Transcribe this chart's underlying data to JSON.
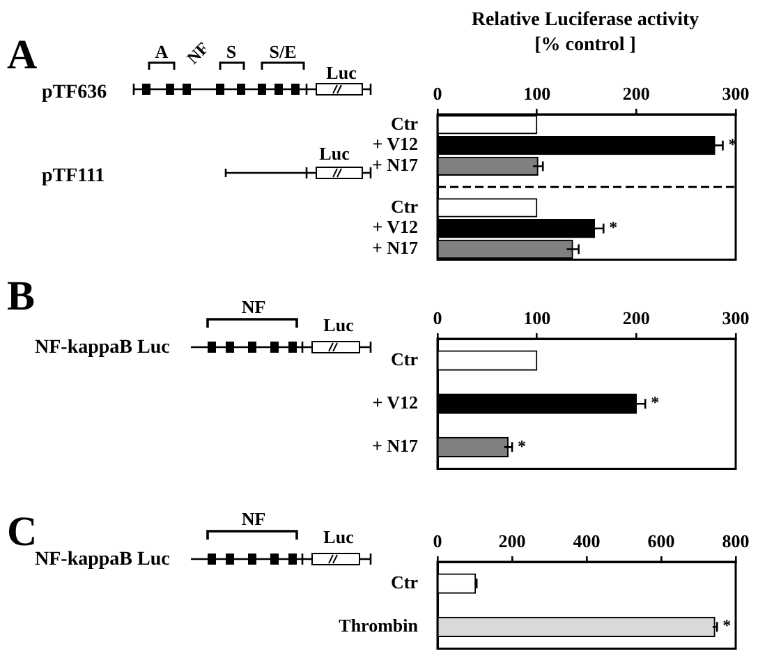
{
  "chart_data": [
    {
      "type": "bar",
      "orientation": "horizontal",
      "title": "Relative Luciferase activity",
      "subtitle": "[% control ]",
      "categories": [
        "Ctr",
        "+ V12",
        "+ N17",
        null,
        "Ctr",
        "+ V12",
        "+ N17"
      ],
      "values": [
        100,
        279,
        101,
        null,
        100,
        158,
        136
      ],
      "colors": [
        "#ffffff",
        "#000000",
        "#808080",
        "#ffffff",
        "#ffffff",
        "#000000",
        "#808080"
      ],
      "errors": [
        null,
        8,
        5,
        null,
        null,
        9,
        6
      ],
      "value_labels": [
        null,
        "*",
        null,
        null,
        null,
        "*",
        null
      ],
      "xlim": [
        0,
        300
      ],
      "xticks": [
        0,
        100,
        200,
        300
      ],
      "annotations": [
        "A",
        "pTF636",
        "pTF111",
        "A",
        "NF",
        "S",
        "S/E",
        "Luc",
        "Luc"
      ]
    },
    {
      "type": "bar",
      "orientation": "horizontal",
      "categories": [
        "Ctr",
        "+ V12",
        "+ N17"
      ],
      "values": [
        100,
        200,
        71
      ],
      "colors": [
        "#ffffff",
        "#000000",
        "#808080"
      ],
      "errors": [
        null,
        9,
        4
      ],
      "value_labels": [
        null,
        "*",
        "*"
      ],
      "xlim": [
        0,
        300
      ],
      "xticks": [
        0,
        100,
        200,
        300
      ],
      "annotations": [
        "B",
        "NF-kappaB Luc",
        "NF",
        "Luc"
      ]
    },
    {
      "type": "bar",
      "orientation": "horizontal",
      "categories": [
        "Ctr",
        "Thrombin"
      ],
      "values": [
        102,
        744
      ],
      "colors": [
        "#ffffff",
        "#d9d9d9"
      ],
      "errors": [
        3,
        6
      ],
      "value_labels": [
        null,
        "*"
      ],
      "xlim": [
        0,
        800
      ],
      "xticks": [
        0,
        200,
        400,
        600,
        800
      ],
      "annotations": [
        "C",
        "NF-kappaB Luc",
        "NF",
        "Luc"
      ]
    }
  ]
}
